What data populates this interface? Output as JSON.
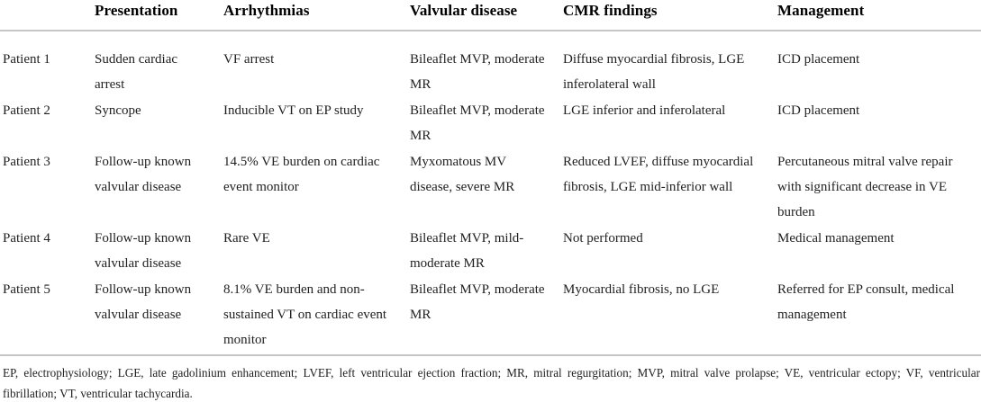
{
  "table": {
    "columns": [
      "",
      "Presentation",
      "Arrhythmias",
      "Valvular disease",
      "CMR findings",
      "Management"
    ],
    "rows": [
      {
        "label": "Patient 1",
        "presentation": "Sudden cardiac arrest",
        "arrhythmias": "VF arrest",
        "valvular": "Bileaflet MVP, moderate MR",
        "cmr": "Diffuse myocardial fibrosis, LGE inferolateral wall",
        "management": "ICD placement"
      },
      {
        "label": "Patient 2",
        "presentation": "Syncope",
        "arrhythmias": "Inducible VT on EP study",
        "valvular": "Bileaflet MVP, moderate MR",
        "cmr": "LGE inferior and inferolateral",
        "management": "ICD placement"
      },
      {
        "label": "Patient 3",
        "presentation": "Follow-up known valvular disease",
        "arrhythmias": "14.5% VE burden on cardiac event monitor",
        "valvular": "Myxomatous MV disease, severe MR",
        "cmr": "Reduced LVEF, diffuse myocardial fibrosis, LGE mid-inferior wall",
        "management": "Percutaneous mitral valve repair with significant decrease in VE burden"
      },
      {
        "label": "Patient 4",
        "presentation": "Follow-up known valvular disease",
        "arrhythmias": "Rare VE",
        "valvular": "Bileaflet MVP, mild-moderate MR",
        "cmr": "Not performed",
        "management": "Medical management"
      },
      {
        "label": "Patient 5",
        "presentation": "Follow-up known valvular disease",
        "arrhythmias": "8.1% VE burden and non-sustained VT on cardiac event monitor",
        "valvular": "Bileaflet MVP, moderate MR",
        "cmr": "Myocardial fibrosis, no LGE",
        "management": "Referred for EP consult, medical management"
      }
    ],
    "footnote": "EP, electrophysiology; LGE, late gadolinium enhancement; LVEF, left ventricular ejection fraction; MR, mitral regurgitation; MVP, mitral valve prolapse; VE, ventricular ectopy; VF, ventricular fibrillation; VT, ventricular tachycardia."
  },
  "colors": {
    "rule": "#c5c5c5",
    "text": "#1f1f1f",
    "header_text": "#000000",
    "background": "#ffffff"
  }
}
